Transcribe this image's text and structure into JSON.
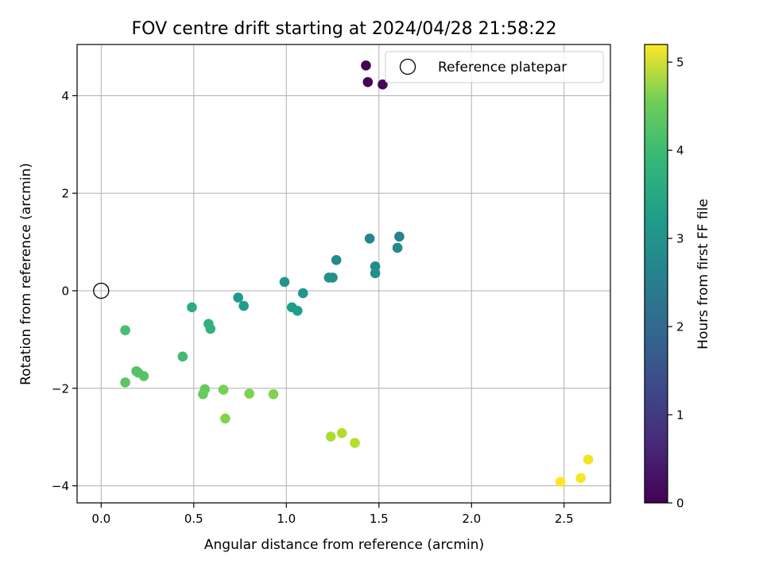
{
  "chart_data": {
    "type": "scatter",
    "title": "FOV centre drift starting at 2024/04/28 21:58:22",
    "xlabel": "Angular distance from reference (arcmin)",
    "ylabel": "Rotation from reference (arcmin)",
    "xlim": [
      -0.13,
      2.75
    ],
    "ylim": [
      -4.35,
      5.05
    ],
    "xticks": [
      "0.0",
      "0.5",
      "1.0",
      "1.5",
      "2.0",
      "2.5"
    ],
    "xtick_values": [
      0,
      0.5,
      1.0,
      1.5,
      2.0,
      2.5
    ],
    "yticks": [
      "−4",
      "−2",
      "0",
      "2",
      "4"
    ],
    "ytick_values": [
      -4,
      -2,
      0,
      2,
      4
    ],
    "grid": true,
    "legend": {
      "position": "top-right",
      "entries": [
        {
          "label": "Reference platepar",
          "marker": "open-circle"
        }
      ]
    },
    "reference_point": {
      "x": 0,
      "y": 0
    },
    "colorbar": {
      "label": "Hours from first FF file",
      "colormap": "viridis",
      "range": [
        0,
        5.2
      ],
      "ticks": [
        "0",
        "1",
        "2",
        "3",
        "4",
        "5"
      ],
      "tick_values": [
        0,
        1,
        2,
        3,
        4,
        5
      ]
    },
    "points": [
      {
        "x": 1.43,
        "y": 4.62,
        "hours": 0.0
      },
      {
        "x": 1.44,
        "y": 4.28,
        "hours": 0.05
      },
      {
        "x": 1.52,
        "y": 4.23,
        "hours": 0.1
      },
      {
        "x": 1.61,
        "y": 1.11,
        "hours": 2.35
      },
      {
        "x": 1.45,
        "y": 1.07,
        "hours": 2.4
      },
      {
        "x": 1.6,
        "y": 0.88,
        "hours": 2.45
      },
      {
        "x": 1.27,
        "y": 0.63,
        "hours": 2.5
      },
      {
        "x": 1.48,
        "y": 0.5,
        "hours": 2.52
      },
      {
        "x": 1.48,
        "y": 0.36,
        "hours": 2.55
      },
      {
        "x": 1.23,
        "y": 0.27,
        "hours": 2.6
      },
      {
        "x": 1.25,
        "y": 0.27,
        "hours": 2.62
      },
      {
        "x": 0.99,
        "y": 0.18,
        "hours": 2.7
      },
      {
        "x": 1.09,
        "y": -0.05,
        "hours": 2.75
      },
      {
        "x": 0.74,
        "y": -0.14,
        "hours": 2.8
      },
      {
        "x": 0.77,
        "y": -0.31,
        "hours": 2.85
      },
      {
        "x": 1.03,
        "y": -0.34,
        "hours": 2.88
      },
      {
        "x": 1.06,
        "y": -0.41,
        "hours": 2.9
      },
      {
        "x": 0.49,
        "y": -0.34,
        "hours": 3.2
      },
      {
        "x": 0.58,
        "y": -0.68,
        "hours": 3.3
      },
      {
        "x": 0.59,
        "y": -0.78,
        "hours": 3.35
      },
      {
        "x": 0.44,
        "y": -1.35,
        "hours": 3.6
      },
      {
        "x": 0.13,
        "y": -0.81,
        "hours": 3.65
      },
      {
        "x": 0.19,
        "y": -1.65,
        "hours": 3.75
      },
      {
        "x": 0.2,
        "y": -1.68,
        "hours": 3.78
      },
      {
        "x": 0.23,
        "y": -1.75,
        "hours": 3.8
      },
      {
        "x": 0.13,
        "y": -1.88,
        "hours": 3.85
      },
      {
        "x": 0.56,
        "y": -2.02,
        "hours": 3.95
      },
      {
        "x": 0.55,
        "y": -2.12,
        "hours": 3.98
      },
      {
        "x": 0.66,
        "y": -2.03,
        "hours": 4.1
      },
      {
        "x": 0.8,
        "y": -2.11,
        "hours": 4.15
      },
      {
        "x": 0.93,
        "y": -2.12,
        "hours": 4.2
      },
      {
        "x": 0.67,
        "y": -2.62,
        "hours": 4.2
      },
      {
        "x": 1.24,
        "y": -2.99,
        "hours": 4.55
      },
      {
        "x": 1.3,
        "y": -2.92,
        "hours": 4.6
      },
      {
        "x": 1.37,
        "y": -3.12,
        "hours": 4.62
      },
      {
        "x": 2.63,
        "y": -3.46,
        "hours": 5.1
      },
      {
        "x": 2.59,
        "y": -3.84,
        "hours": 5.15
      },
      {
        "x": 2.48,
        "y": -3.92,
        "hours": 5.18
      }
    ]
  }
}
